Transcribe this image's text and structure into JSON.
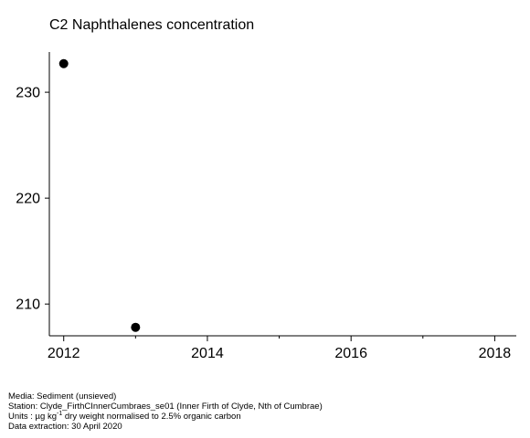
{
  "chart_data": {
    "type": "scatter",
    "title": "C2 Naphthalenes concentration",
    "xlabel": "",
    "ylabel": "",
    "x_ticks": [
      2012,
      2014,
      2016,
      2018
    ],
    "x_minor_ticks": [
      2013,
      2015,
      2017
    ],
    "y_ticks": [
      210,
      220,
      230
    ],
    "xlim": [
      2011.8,
      2018.3
    ],
    "ylim": [
      207.0,
      233.8
    ],
    "grid": false,
    "points": [
      {
        "x": 2012,
        "y": 232.7
      },
      {
        "x": 2013,
        "y": 207.8
      }
    ]
  },
  "footer": {
    "media": "Media: Sediment (unsieved)",
    "station": "Station: Clyde_FirthCInnerCumbraes_se01 (Inner Firth of Clyde, Nth of Cumbrae)",
    "units_prefix": "Units : µg kg",
    "units_sup": "-1",
    "units_suffix": " dry weight normalised to 2.5% organic carbon",
    "extraction": "Data extraction: 30 April 2020"
  }
}
